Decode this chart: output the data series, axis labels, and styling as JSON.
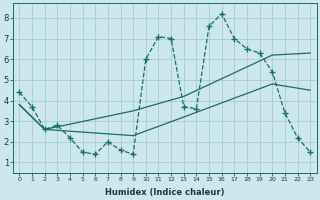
{
  "xlabel": "Humidex (Indice chaleur)",
  "bg_color": "#cce8ec",
  "grid_color": "#aacccc",
  "line_color": "#1a6b6b",
  "xlim": [
    -0.5,
    23.5
  ],
  "ylim": [
    0.5,
    8.7
  ],
  "xticks": [
    0,
    1,
    2,
    3,
    4,
    5,
    6,
    7,
    8,
    9,
    10,
    11,
    12,
    13,
    14,
    15,
    16,
    17,
    18,
    19,
    20,
    21,
    22,
    23
  ],
  "yticks": [
    1,
    2,
    3,
    4,
    5,
    6,
    7,
    8
  ],
  "line_main_x": [
    0,
    1,
    2,
    3,
    4,
    5,
    6,
    7,
    8,
    9,
    10,
    11,
    12,
    13,
    14,
    15,
    16,
    17,
    18,
    19,
    20,
    21,
    22,
    23
  ],
  "line_main_y": [
    4.4,
    3.7,
    2.6,
    2.8,
    2.2,
    1.5,
    1.4,
    2.0,
    1.6,
    1.4,
    6.0,
    7.1,
    7.0,
    3.7,
    3.6,
    7.6,
    8.2,
    7.0,
    6.5,
    6.3,
    5.4,
    3.4,
    2.2,
    1.5
  ],
  "line_upper_x": [
    0,
    2,
    9,
    13,
    20,
    23
  ],
  "line_upper_y": [
    3.8,
    2.6,
    3.5,
    4.2,
    6.2,
    6.3
  ],
  "line_lower_x": [
    0,
    2,
    9,
    13,
    20,
    23
  ],
  "line_lower_y": [
    3.8,
    2.6,
    2.3,
    3.2,
    4.8,
    4.5
  ]
}
